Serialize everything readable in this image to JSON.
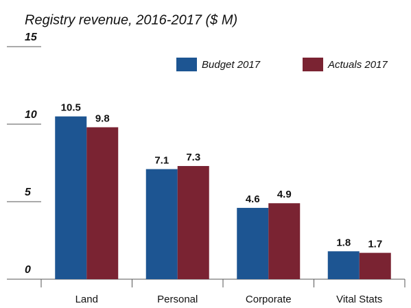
{
  "chart_data": {
    "type": "bar",
    "title": "Registry revenue, 2016-2017 ($ M)",
    "categories": [
      "Land",
      "Personal",
      "Corporate",
      "Vital Stats"
    ],
    "series": [
      {
        "name": "Budget 2017",
        "color": "#1d5592",
        "values": [
          10.5,
          7.1,
          4.6,
          1.8
        ]
      },
      {
        "name": "Actuals 2017",
        "color": "#7a2332",
        "values": [
          9.8,
          7.3,
          4.9,
          1.7
        ]
      }
    ],
    "ylim": [
      0,
      15
    ],
    "yticks": [
      0,
      5,
      10,
      15
    ],
    "grid": true,
    "legend": "top-right"
  }
}
